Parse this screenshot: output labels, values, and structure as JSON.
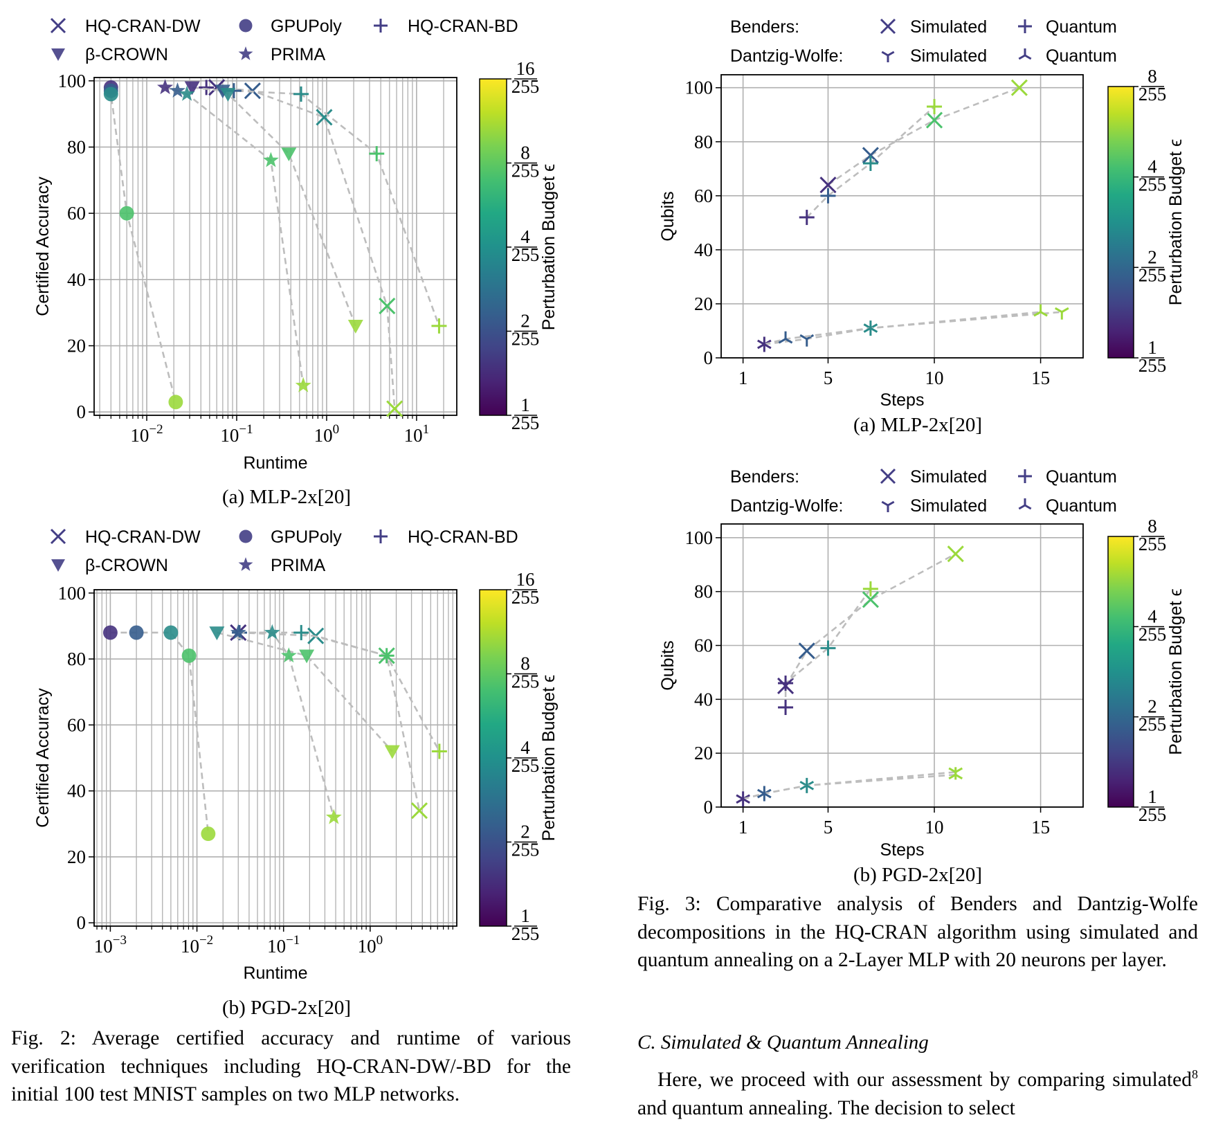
{
  "colorbar_label": "Perturbation Budget ϵ",
  "palette": {
    "grid": "#b0b0b0",
    "dash_line": "#bdbdbd",
    "legend_marker": "#433e85"
  },
  "fig2": {
    "caption": "Fig. 2: Average certified accuracy and runtime of various verification techniques including HQ-CRAN-DW/-BD for the initial 100 test MNIST samples on two MLP networks."
  },
  "fig3": {
    "caption": "Fig. 3: Comparative analysis of Benders and Dantzig-Wolfe decompositions in the HQ-CRAN algorithm using simulated and quantum annealing on a 2-Layer MLP with 20 neurons per layer."
  },
  "section": {
    "heading": "C. Simulated & Quantum Annealing",
    "text_a": "Here, we proceed with our assessment by comparing simulated",
    "footnote": "8",
    "text_b": " and quantum annealing. The decision to select"
  },
  "chart_data": [
    {
      "type": "scatter",
      "caption": "(a) MLP-2x[20]",
      "xlabel": "Runtime",
      "ylabel": "Certified Accuracy",
      "xscale": "log",
      "xlim": [
        0.0026,
        28
      ],
      "ylim": [
        -1,
        101
      ],
      "xticks": [
        -2,
        -1,
        0,
        1
      ],
      "yticks": [
        0,
        20,
        40,
        60,
        80,
        100
      ],
      "grid": true,
      "colorbar": {
        "scale": "log",
        "ticks": [
          [
            "1",
            "255"
          ],
          [
            "2",
            "255"
          ],
          [
            "4",
            "255"
          ],
          [
            "8",
            "255"
          ],
          [
            "16",
            "255"
          ]
        ],
        "colormap": "viridis"
      },
      "series": [
        {
          "name": "HQ-CRAN-DW",
          "marker": "x",
          "points": [
            {
              "x": 0.06,
              "y": 98,
              "color": "#46327e"
            },
            {
              "x": 0.15,
              "y": 97,
              "color": "#365d8d"
            },
            {
              "x": 0.94,
              "y": 89,
              "color": "#2a8c8a"
            },
            {
              "x": 4.7,
              "y": 32,
              "color": "#4cc26c"
            },
            {
              "x": 5.7,
              "y": 1,
              "color": "#9bd93c"
            }
          ]
        },
        {
          "name": "GPUPoly",
          "marker": "o",
          "points": [
            {
              "x": 0.004,
              "y": 98,
              "color": "#46327e"
            },
            {
              "x": 0.004,
              "y": 97,
              "color": "#365d8d"
            },
            {
              "x": 0.004,
              "y": 96,
              "color": "#2a8c8a"
            },
            {
              "x": 0.006,
              "y": 60,
              "color": "#4cc26c"
            },
            {
              "x": 0.021,
              "y": 3,
              "color": "#9bd93c"
            }
          ]
        },
        {
          "name": "HQ-CRAN-BD",
          "marker": "+",
          "points": [
            {
              "x": 0.046,
              "y": 98,
              "color": "#46327e"
            },
            {
              "x": 0.093,
              "y": 97,
              "color": "#365d8d"
            },
            {
              "x": 0.52,
              "y": 96,
              "color": "#2a8c8a"
            },
            {
              "x": 3.6,
              "y": 78,
              "color": "#4cc26c"
            },
            {
              "x": 17.8,
              "y": 26,
              "color": "#9bd93c"
            }
          ]
        },
        {
          "name": "β-CROWN",
          "marker": "v",
          "points": [
            {
              "x": 0.032,
              "y": 98,
              "color": "#46327e"
            },
            {
              "x": 0.07,
              "y": 97,
              "color": "#365d8d"
            },
            {
              "x": 0.08,
              "y": 96,
              "color": "#2a8c8a"
            },
            {
              "x": 0.38,
              "y": 78,
              "color": "#4cc26c"
            },
            {
              "x": 2.1,
              "y": 26,
              "color": "#9bd93c"
            }
          ]
        },
        {
          "name": "PRIMA",
          "marker": "*",
          "points": [
            {
              "x": 0.016,
              "y": 98,
              "color": "#46327e"
            },
            {
              "x": 0.022,
              "y": 97,
              "color": "#365d8d"
            },
            {
              "x": 0.028,
              "y": 96,
              "color": "#2a8c8a"
            },
            {
              "x": 0.24,
              "y": 76,
              "color": "#4cc26c"
            },
            {
              "x": 0.55,
              "y": 8,
              "color": "#9bd93c"
            }
          ]
        }
      ]
    },
    {
      "type": "scatter",
      "caption": "(b) PGD-2x[20]",
      "xlabel": "Runtime",
      "ylabel": "Certified Accuracy",
      "xscale": "log",
      "xlim": [
        0.00065,
        10
      ],
      "ylim": [
        -1,
        101
      ],
      "xticks": [
        -3,
        -2,
        -1,
        0
      ],
      "yticks": [
        0,
        20,
        40,
        60,
        80,
        100
      ],
      "grid": true,
      "colorbar": {
        "scale": "log",
        "ticks": [
          [
            "1",
            "255"
          ],
          [
            "2",
            "255"
          ],
          [
            "4",
            "255"
          ],
          [
            "8",
            "255"
          ],
          [
            "16",
            "255"
          ]
        ],
        "colormap": "viridis"
      },
      "series": [
        {
          "name": "HQ-CRAN-DW",
          "marker": "x",
          "points": [
            {
              "x": 0.03,
              "y": 88,
              "color": "#46327e"
            },
            {
              "x": 0.235,
              "y": 87,
              "color": "#2a8c8a"
            },
            {
              "x": 1.55,
              "y": 81,
              "color": "#4cc26c"
            },
            {
              "x": 3.7,
              "y": 34,
              "color": "#9bd93c"
            }
          ]
        },
        {
          "name": "GPUPoly",
          "marker": "o",
          "points": [
            {
              "x": 0.001,
              "y": 88,
              "color": "#46327e"
            },
            {
              "x": 0.002,
              "y": 88,
              "color": "#365d8d"
            },
            {
              "x": 0.005,
              "y": 88,
              "color": "#2a8c8a"
            },
            {
              "x": 0.0081,
              "y": 81,
              "color": "#4cc26c"
            },
            {
              "x": 0.0135,
              "y": 27,
              "color": "#9bd93c"
            }
          ]
        },
        {
          "name": "HQ-CRAN-BD",
          "marker": "+",
          "points": [
            {
              "x": 0.031,
              "y": 88,
              "color": "#365d8d"
            },
            {
              "x": 0.16,
              "y": 88,
              "color": "#2a8c8a"
            },
            {
              "x": 1.55,
              "y": 81,
              "color": "#4cc26c"
            },
            {
              "x": 6.3,
              "y": 52,
              "color": "#9bd93c"
            }
          ]
        },
        {
          "name": "β-CROWN",
          "marker": "v",
          "points": [
            {
              "x": 0.017,
              "y": 88,
              "color": "#2a8c8a"
            },
            {
              "x": 0.185,
              "y": 81,
              "color": "#4cc26c"
            },
            {
              "x": 1.8,
              "y": 52,
              "color": "#9bd93c"
            }
          ]
        },
        {
          "name": "PRIMA",
          "marker": "*",
          "points": [
            {
              "x": 0.03,
              "y": 88,
              "color": "#365d8d"
            },
            {
              "x": 0.074,
              "y": 88,
              "color": "#2a8c8a"
            },
            {
              "x": 0.115,
              "y": 81,
              "color": "#4cc26c"
            },
            {
              "x": 0.38,
              "y": 32,
              "color": "#9bd93c"
            }
          ]
        }
      ]
    },
    {
      "type": "scatter",
      "caption": "(a) MLP-2x[20]",
      "xlabel": "Steps",
      "ylabel": "Qubits",
      "xscale": "linear",
      "xlim": [
        -0.03,
        17.0
      ],
      "ylim": [
        0,
        104.8
      ],
      "xticks": [
        1,
        5,
        10,
        15
      ],
      "yticks": [
        0,
        20,
        40,
        60,
        80,
        100
      ],
      "grid": true,
      "colorbar": {
        "scale": "log",
        "ticks": [
          [
            "1",
            "255"
          ],
          [
            "2",
            "255"
          ],
          [
            "4",
            "255"
          ],
          [
            "8",
            "255"
          ]
        ],
        "colormap": "viridis"
      },
      "legend_groups": [
        "Benders:",
        "Dantzig-Wolfe:"
      ],
      "series": [
        {
          "group": 0,
          "name": "Simulated",
          "marker": "x",
          "points": [
            {
              "x": 5,
              "y": 64,
              "color": "#46327e"
            },
            {
              "x": 7,
              "y": 75,
              "color": "#365d8d"
            },
            {
              "x": 10,
              "y": 88,
              "color": "#4cc26c"
            },
            {
              "x": 14,
              "y": 100,
              "color": "#9bd93c"
            }
          ]
        },
        {
          "group": 0,
          "name": "Quantum",
          "marker": "+",
          "points": [
            {
              "x": 4,
              "y": 52,
              "color": "#46327e"
            },
            {
              "x": 5,
              "y": 60,
              "color": "#365d8d"
            },
            {
              "x": 7,
              "y": 72,
              "color": "#2a8c8a"
            },
            {
              "x": 10,
              "y": 93,
              "color": "#9bd93c"
            }
          ]
        },
        {
          "group": 1,
          "name": "Simulated",
          "marker": "tri_down",
          "points": [
            {
              "x": 2,
              "y": 5,
              "color": "#46327e"
            },
            {
              "x": 4,
              "y": 7,
              "color": "#365d8d"
            },
            {
              "x": 7,
              "y": 11,
              "color": "#2a8c8a"
            },
            {
              "x": 16,
              "y": 17,
              "color": "#9bd93c"
            }
          ]
        },
        {
          "group": 1,
          "name": "Quantum",
          "marker": "tri_up",
          "points": [
            {
              "x": 2,
              "y": 5,
              "color": "#46327e"
            },
            {
              "x": 3,
              "y": 7,
              "color": "#365d8d"
            },
            {
              "x": 7,
              "y": 11,
              "color": "#2a8c8a"
            },
            {
              "x": 15,
              "y": 17,
              "color": "#9bd93c"
            }
          ]
        }
      ]
    },
    {
      "type": "scatter",
      "caption": "(b) PGD-2x[20]",
      "xlabel": "Steps",
      "ylabel": "Qubits",
      "xscale": "linear",
      "xlim": [
        -0.03,
        17.0
      ],
      "ylim": [
        0,
        105.1
      ],
      "xticks": [
        1,
        5,
        10,
        15
      ],
      "yticks": [
        0,
        20,
        40,
        60,
        80,
        100
      ],
      "grid": true,
      "colorbar": {
        "scale": "log",
        "ticks": [
          [
            "1",
            "255"
          ],
          [
            "2",
            "255"
          ],
          [
            "4",
            "255"
          ],
          [
            "8",
            "255"
          ]
        ],
        "colormap": "viridis"
      },
      "legend_groups": [
        "Benders:",
        "Dantzig-Wolfe:"
      ],
      "series": [
        {
          "group": 0,
          "name": "Simulated",
          "marker": "x",
          "points": [
            {
              "x": 3,
              "y": 45,
              "color": "#46327e"
            },
            {
              "x": 4,
              "y": 58,
              "color": "#365d8d"
            },
            {
              "x": 7,
              "y": 77,
              "color": "#4cc26c"
            },
            {
              "x": 11,
              "y": 94,
              "color": "#9bd93c"
            }
          ]
        },
        {
          "group": 0,
          "name": "Quantum",
          "marker": "+",
          "points": [
            {
              "x": 3,
              "y": 37,
              "color": "#46327e"
            },
            {
              "x": 3,
              "y": 46,
              "color": "#46327e"
            },
            {
              "x": 5,
              "y": 59,
              "color": "#2a8c8a"
            },
            {
              "x": 7,
              "y": 81,
              "color": "#9bd93c"
            }
          ]
        },
        {
          "group": 1,
          "name": "Simulated",
          "marker": "tri_down",
          "points": [
            {
              "x": 1,
              "y": 3,
              "color": "#46327e"
            },
            {
              "x": 2,
              "y": 5,
              "color": "#365d8d"
            },
            {
              "x": 4,
              "y": 8,
              "color": "#2a8c8a"
            },
            {
              "x": 11,
              "y": 13,
              "color": "#9bd93c"
            }
          ]
        },
        {
          "group": 1,
          "name": "Quantum",
          "marker": "tri_up",
          "points": [
            {
              "x": 1,
              "y": 3,
              "color": "#46327e"
            },
            {
              "x": 2,
              "y": 5,
              "color": "#365d8d"
            },
            {
              "x": 4,
              "y": 8,
              "color": "#2a8c8a"
            },
            {
              "x": 11,
              "y": 12,
              "color": "#9bd93c"
            }
          ]
        }
      ]
    }
  ]
}
